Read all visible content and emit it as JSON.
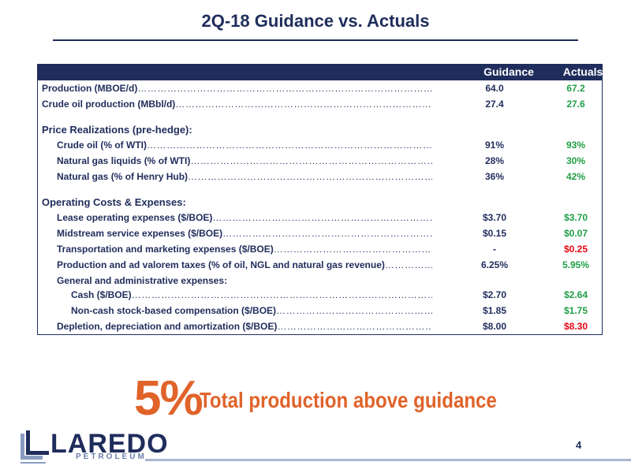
{
  "title": "2Q-18 Guidance vs. Actuals",
  "table": {
    "headers": {
      "guidance": "Guidance",
      "actuals": "Actuals"
    },
    "production": [
      {
        "label": "Production (MBOE/d)",
        "guidance": "64.0",
        "actual": "67.2"
      },
      {
        "label": "Crude oil production (MBbl/d)",
        "guidance": "27.4",
        "actual": "27.6"
      }
    ],
    "price_section_title": "Price Realizations (pre-hedge):",
    "price": [
      {
        "label": "Crude oil (% of WTI)",
        "guidance": "91%",
        "actual": "93%"
      },
      {
        "label": "Natural gas liquids (% of WTI)",
        "guidance": "28%",
        "actual": "30%"
      },
      {
        "label": "Natural gas (% of Henry Hub)",
        "guidance": "36%",
        "actual": "42%"
      }
    ],
    "costs_section_title": "Operating Costs & Expenses:",
    "costs": [
      {
        "label": "Lease operating expenses ($/BOE)",
        "guidance": "$3.70",
        "actual": "$3.70"
      },
      {
        "label": "Midstream service expenses ($/BOE)",
        "guidance": "$0.15",
        "actual": "$0.07"
      },
      {
        "label": "Transportation and marketing expenses ($/BOE)",
        "guidance": "-",
        "actual": "$0.25"
      },
      {
        "label": "Production and ad valorem taxes (% of oil, NGL and natural gas revenue)",
        "guidance": "6.25%",
        "actual": "5.95%"
      }
    ],
    "ga_title": "General and administrative expenses:",
    "ga": [
      {
        "label": "Cash ($/BOE)",
        "guidance": "$2.70",
        "actual": "$2.64"
      },
      {
        "label": "Non-cash stock-based compensation ($/BOE)",
        "guidance": "$1.85",
        "actual": "$1.75"
      }
    ],
    "dda": {
      "label": "Depletion, depreciation and amortization ($/BOE)",
      "guidance": "$8.00",
      "actual": "$8.30"
    }
  },
  "highlight": {
    "percent": "5%",
    "text": "Total production above guidance"
  },
  "logo": {
    "name": "LAREDO",
    "sub": "PETROLEUM"
  },
  "page_number": "4",
  "colors": {
    "navy": "#1f2d5c",
    "green": "#1f9e45",
    "red": "#e30613",
    "orange": "#e0632a",
    "footer_rule": "#a9b7d0"
  }
}
